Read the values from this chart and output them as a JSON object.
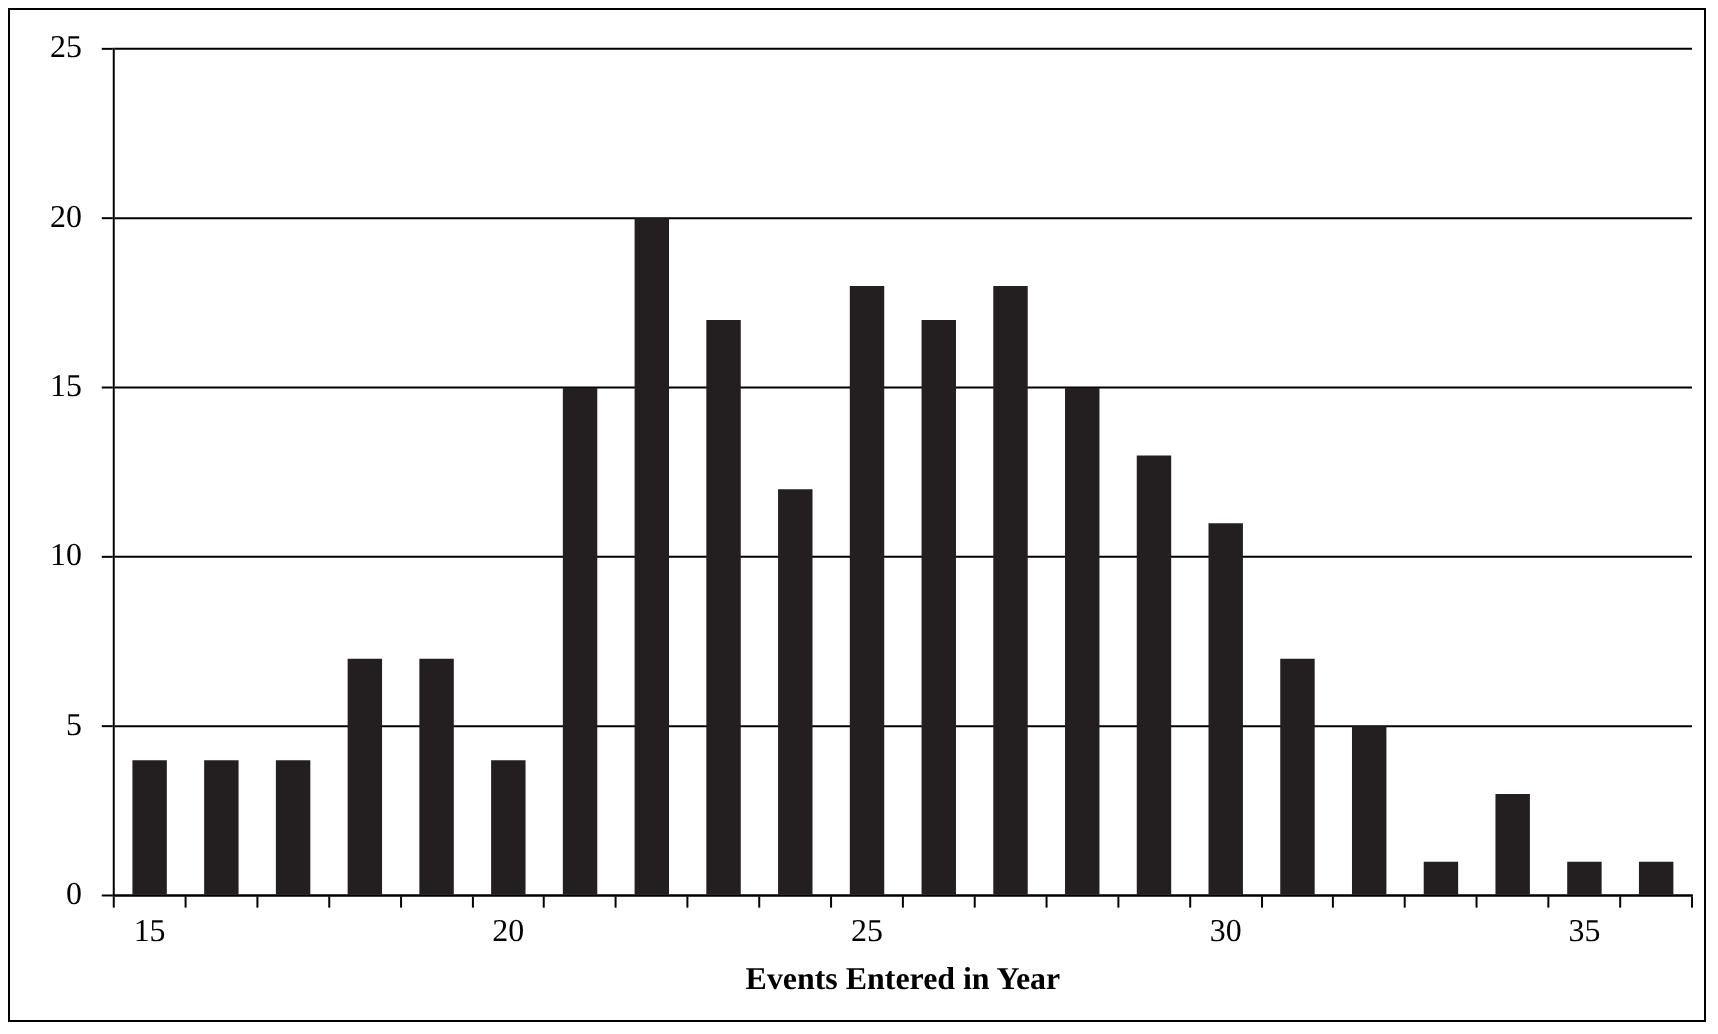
{
  "chart_data": {
    "type": "bar",
    "xlabel": "Events Entered in Year",
    "categories": [
      "15",
      null,
      null,
      null,
      null,
      "20",
      null,
      null,
      null,
      null,
      "25",
      null,
      null,
      null,
      null,
      "30",
      null,
      null,
      null,
      null,
      "35",
      null
    ],
    "values": [
      4,
      4,
      4,
      7,
      7,
      4,
      15,
      20,
      17,
      12,
      18,
      17,
      18,
      15,
      13,
      11,
      7,
      5,
      1,
      3,
      1,
      1
    ],
    "color": "#231f20",
    "ylim": [
      0,
      25
    ],
    "yticks": [
      0,
      5,
      10,
      15,
      20,
      25
    ],
    "grid": "y",
    "legend": false
  }
}
